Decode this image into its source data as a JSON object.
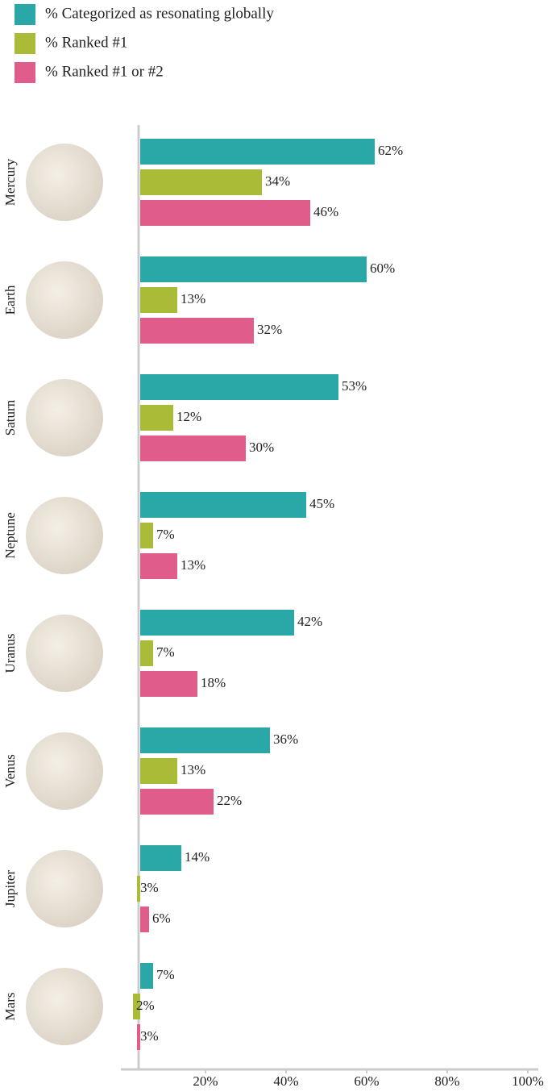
{
  "chart_data": {
    "type": "bar",
    "orientation": "horizontal",
    "categories": [
      "Mercury",
      "Earth",
      "Saturn",
      "Neptune",
      "Uranus",
      "Venus",
      "Jupiter",
      "Mars"
    ],
    "series": [
      {
        "name": "% Categorized as resonating globally",
        "color": "#2aa8a8",
        "values": [
          62,
          60,
          53,
          45,
          42,
          36,
          14,
          7
        ],
        "value_labels": [
          "62%",
          "60%",
          "53%",
          "45%",
          "42%",
          "36%",
          "14%",
          "7%"
        ]
      },
      {
        "name": "% Ranked #1",
        "color": "#a9bb37",
        "values": [
          34,
          13,
          12,
          7,
          7,
          13,
          3,
          2
        ],
        "value_labels": [
          "34%",
          "13%",
          "12%",
          "7%",
          "7%",
          "13%",
          "3%",
          "2%"
        ]
      },
      {
        "name": "% Ranked #1 or #2",
        "color": "#e05c8a",
        "values": [
          46,
          32,
          30,
          13,
          18,
          22,
          6,
          3
        ],
        "value_labels": [
          "46%",
          "32%",
          "30%",
          "13%",
          "18%",
          "22%",
          "6%",
          "3%"
        ]
      }
    ],
    "xlim": [
      0,
      100
    ],
    "xticks": [
      {
        "value": 20,
        "label": "20%"
      },
      {
        "value": 40,
        "label": "40%"
      },
      {
        "value": 60,
        "label": "60%"
      },
      {
        "value": 80,
        "label": "80%"
      },
      {
        "value": 100,
        "label": "100%"
      }
    ],
    "legend": "top-left",
    "grid": false
  }
}
